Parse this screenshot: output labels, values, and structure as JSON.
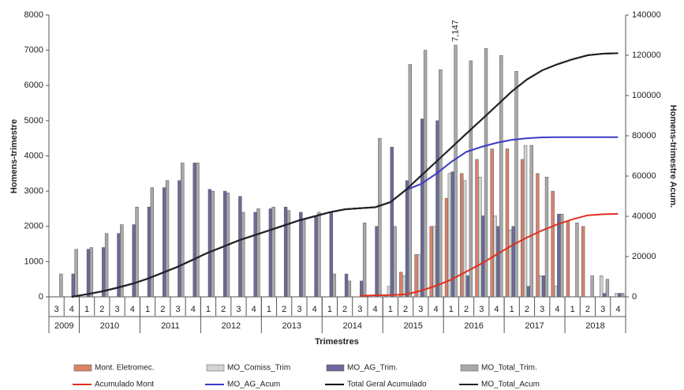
{
  "chart_data": {
    "type": "combo",
    "x_label": "Trimestres",
    "y_label": "Homens-trimestre",
    "y2_label": "Homens-trimestre Acum.",
    "categories": [
      "3",
      "4",
      "1",
      "2",
      "3",
      "4",
      "1",
      "2",
      "3",
      "4",
      "1",
      "2",
      "3",
      "4",
      "1",
      "2",
      "3",
      "4",
      "1",
      "2",
      "3",
      "4",
      "1",
      "2",
      "3",
      "4",
      "1",
      "2",
      "3",
      "4",
      "1",
      "2",
      "3",
      "4",
      "1",
      "2",
      "3",
      "4"
    ],
    "years": [
      "2009",
      "2010",
      "2011",
      "2012",
      "2013",
      "2014",
      "2015",
      "2016",
      "2017",
      "2018"
    ],
    "ylim": [
      0,
      8000
    ],
    "yticks": [
      0,
      1000,
      2000,
      3000,
      4000,
      5000,
      6000,
      7000,
      8000
    ],
    "y2lim": [
      0,
      140000
    ],
    "y2ticks": [
      0,
      20000,
      40000,
      60000,
      80000,
      100000,
      120000,
      140000
    ],
    "series": [
      {
        "name": "Mont. Eletromec.",
        "kind": "bar",
        "color": "#d9826a",
        "values": [
          0,
          0,
          0,
          0,
          0,
          0,
          0,
          0,
          0,
          0,
          0,
          0,
          0,
          0,
          0,
          0,
          0,
          0,
          0,
          0,
          0,
          0,
          50,
          700,
          1200,
          2000,
          2800,
          3500,
          3900,
          4200,
          4200,
          3900,
          3500,
          3000,
          2150,
          2000,
          0,
          0
        ]
      },
      {
        "name": "MO_Comiss_Trim",
        "kind": "bar",
        "color": "#d2d2d2",
        "values": [
          0,
          0,
          0,
          0,
          0,
          0,
          0,
          0,
          0,
          0,
          0,
          0,
          0,
          0,
          0,
          0,
          0,
          0,
          0,
          0,
          0,
          0,
          300,
          600,
          1200,
          2000,
          3500,
          3300,
          3400,
          2300,
          1900,
          4300,
          600,
          300,
          0,
          0,
          600,
          100
        ]
      },
      {
        "name": "MO_AG_Trim.",
        "kind": "bar",
        "color": "#6a6a9a",
        "values": [
          0,
          650,
          1350,
          1400,
          1800,
          2050,
          2550,
          3100,
          3300,
          3800,
          3050,
          3000,
          2850,
          2400,
          2500,
          2550,
          2400,
          2300,
          2400,
          650,
          450,
          2000,
          4250,
          3300,
          5050,
          5000,
          3550,
          600,
          2300,
          2000,
          2000,
          300,
          600,
          2350,
          0,
          0,
          100,
          100
        ]
      },
      {
        "name": "MO_Total_Trim.",
        "kind": "bar",
        "color": "#a9a9a9",
        "values": [
          650,
          1350,
          1400,
          1800,
          2050,
          2550,
          3100,
          3300,
          3800,
          3800,
          3000,
          2950,
          2400,
          2500,
          2550,
          2450,
          2200,
          2400,
          650,
          450,
          2100,
          4500,
          2000,
          6600,
          7000,
          6450,
          7147,
          6700,
          7050,
          6850,
          6400,
          4300,
          3400,
          2350,
          2100,
          600,
          500,
          100
        ],
        "value_labels": [
          null,
          null,
          null,
          null,
          null,
          null,
          null,
          null,
          null,
          null,
          null,
          null,
          null,
          null,
          null,
          null,
          null,
          null,
          null,
          null,
          null,
          null,
          null,
          null,
          null,
          null,
          "7,147",
          null,
          null,
          null,
          null,
          null,
          null,
          null,
          null,
          null,
          null,
          null
        ]
      },
      {
        "name": "Acumulado Mont",
        "kind": "line",
        "axis": "y2",
        "color": "#e0301e",
        "values": [
          null,
          null,
          null,
          null,
          null,
          null,
          null,
          null,
          null,
          null,
          null,
          null,
          null,
          null,
          null,
          null,
          null,
          null,
          null,
          null,
          500,
          800,
          900,
          1200,
          3000,
          5500,
          8500,
          12500,
          16500,
          21000,
          25500,
          29500,
          33000,
          36000,
          38500,
          40500,
          41000,
          41200
        ]
      },
      {
        "name": "MO_AG_Acum",
        "kind": "line",
        "axis": "y2",
        "color": "#3b3bc8",
        "values": [
          null,
          0,
          1300,
          2700,
          4500,
          6500,
          9000,
          12000,
          15000,
          18500,
          22000,
          25000,
          28000,
          30500,
          33000,
          35500,
          38000,
          40000,
          42000,
          43500,
          44000,
          44500,
          47000,
          53000,
          56000,
          61000,
          67000,
          72000,
          74500,
          76500,
          78000,
          78800,
          79200,
          79300,
          79300,
          79300,
          79300,
          79300
        ]
      },
      {
        "name": "Total Geral Acumulado",
        "kind": "line",
        "axis": "y2",
        "color": "#000000",
        "values": [
          null,
          0,
          1300,
          2700,
          4500,
          6500,
          9000,
          12000,
          15000,
          18500,
          22000,
          25000,
          28000,
          30500,
          33000,
          35500,
          38000,
          40000,
          42000,
          43500,
          44000,
          44500,
          47000,
          53000,
          60000,
          67000,
          74000,
          81000,
          88000,
          95000,
          102000,
          108000,
          112500,
          115500,
          118000,
          120000,
          120800,
          121000
        ]
      },
      {
        "name": "MO_Total_Acum",
        "kind": "line",
        "axis": "y2",
        "color": "#222222",
        "values": [
          null,
          0,
          1300,
          2700,
          4500,
          6500,
          9000,
          12000,
          15000,
          18500,
          22000,
          25000,
          28000,
          30500,
          33000,
          35500,
          38000,
          40000,
          42000,
          43500,
          44000,
          44500,
          47000,
          53000,
          60000,
          67000,
          74000,
          81000,
          88000,
          95000,
          102000,
          108000,
          112500,
          115500,
          118000,
          120000,
          120800,
          121000
        ]
      }
    ]
  }
}
